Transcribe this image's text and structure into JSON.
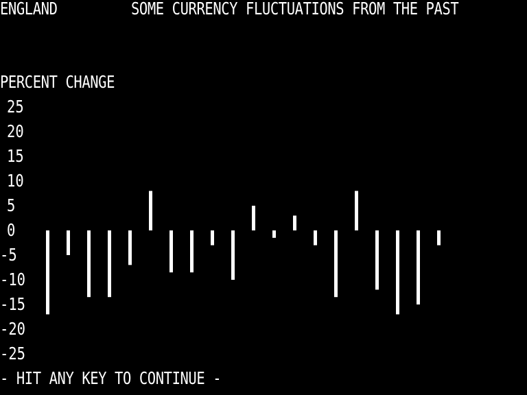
{
  "header": {
    "country": "ENGLAND",
    "title": "SOME CURRENCY FLUCTUATIONS FROM THE PAST"
  },
  "footer": {
    "prompt": "- HIT ANY KEY TO CONTINUE -"
  },
  "colors": {
    "background": "#000000",
    "foreground": "#ffffff"
  },
  "chart_data": {
    "type": "bar",
    "title": "SOME CURRENCY FLUCTUATIONS FROM THE PAST",
    "xlabel": "",
    "ylabel": "PERCENT CHANGE",
    "ylim": [
      -25,
      25
    ],
    "yticks": [
      25,
      20,
      15,
      10,
      5,
      0,
      -5,
      -10,
      -15,
      -20,
      -25
    ],
    "yticklabels": [
      "25",
      "20",
      "15",
      "10",
      "5",
      "0",
      "-5",
      "-10",
      "-15",
      "-20",
      "-25"
    ],
    "grid": false,
    "series": [
      {
        "values": [
          -17,
          -5,
          -13.5,
          -13.5,
          -7,
          8,
          -8.5,
          -8.5,
          -3,
          -10,
          5,
          -1.5,
          3,
          -3,
          -13.5,
          8,
          -12,
          -17,
          -15,
          -3
        ]
      }
    ]
  }
}
